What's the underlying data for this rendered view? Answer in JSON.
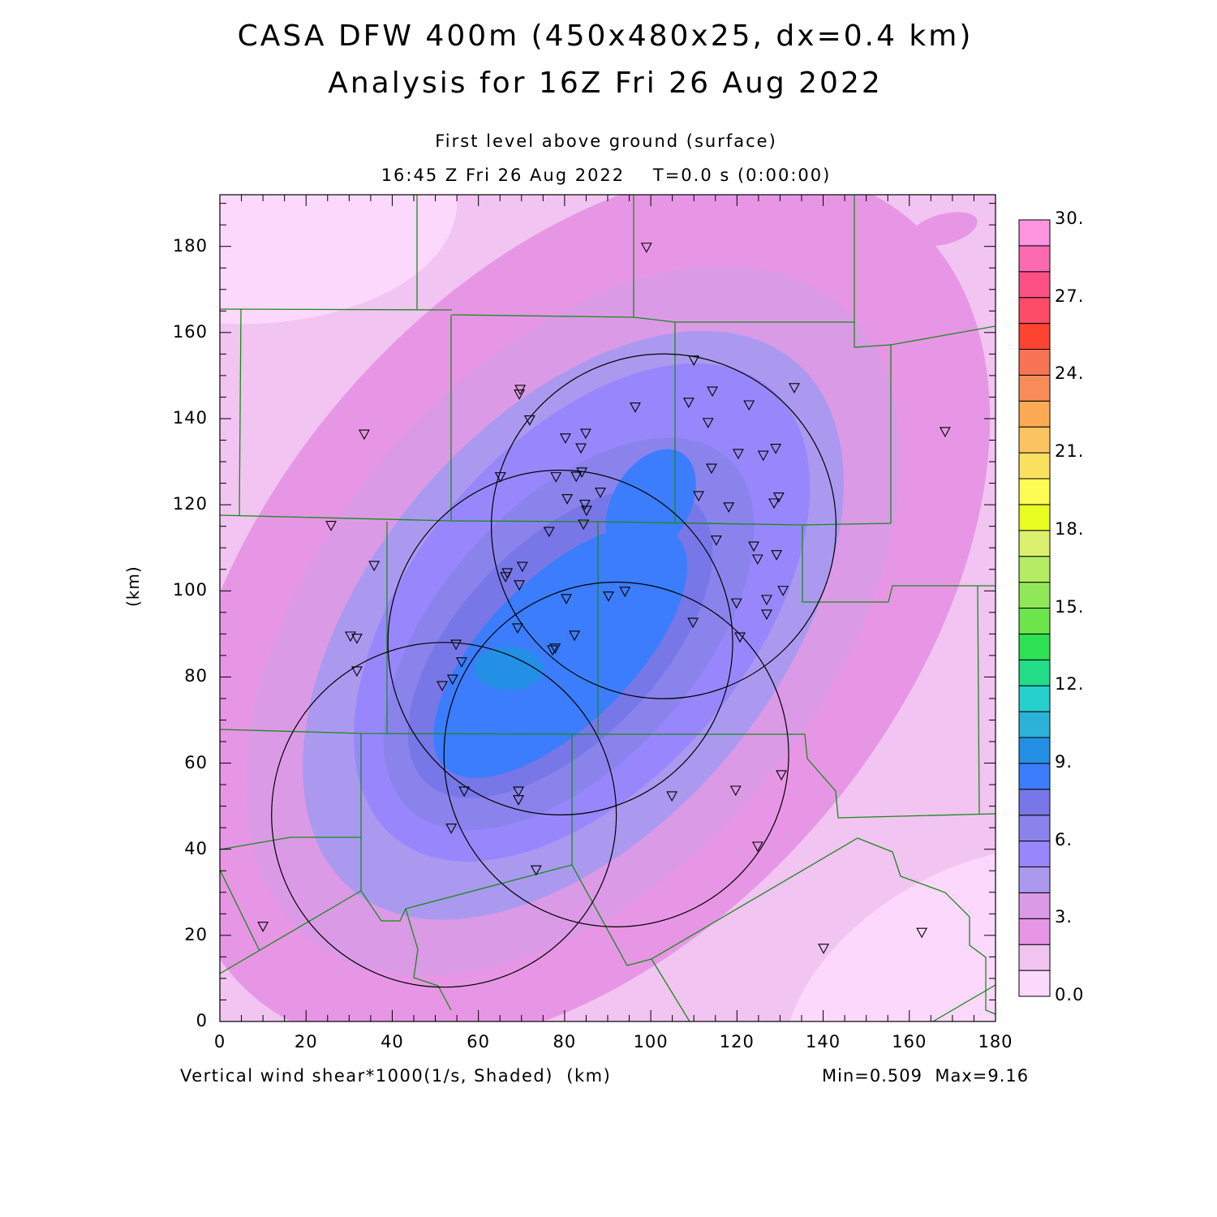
{
  "chart_data": {
    "type": "heatmap",
    "title": "CASA DFW 400m (450x480x25, dx=0.4 km)",
    "subtitle": "Analysis for 16Z Fri 26 Aug 2022",
    "level_label": "First level above ground (surface)",
    "time_label": "16:45 Z Fri 26 Aug 2022    T=0.0 s (0:00:00)",
    "variable_label": "Vertical wind shear*1000(1/s, Shaded)  (km)",
    "minmax_label": "Min=0.509  Max=9.16",
    "min": 0.509,
    "max": 9.16,
    "xlabel": "(km)",
    "ylabel": "(km)",
    "xlim": [
      0,
      180
    ],
    "ylim": [
      0,
      192
    ],
    "x_ticks": [
      "0",
      "20",
      "40",
      "60",
      "80",
      "100",
      "120",
      "140",
      "160",
      "180"
    ],
    "y_ticks": [
      "0",
      "20",
      "40",
      "60",
      "80",
      "100",
      "120",
      "140",
      "160",
      "180"
    ],
    "colorbar": {
      "range": [
        0,
        30
      ],
      "step": 1,
      "tick_labels": [
        "0.0",
        "3.",
        "6.",
        "9.",
        "12.",
        "15.",
        "18.",
        "21.",
        "24.",
        "27.",
        "30."
      ],
      "colors": [
        "#fdd8fd",
        "#f1c4f1",
        "#e796e5",
        "#db9ae6",
        "#ab99f0",
        "#9887fc",
        "#8a83ec",
        "#7877e8",
        "#3b7dfc",
        "#2390e6",
        "#2cb2d8",
        "#26d0cc",
        "#22dc88",
        "#2ee054",
        "#6ce44c",
        "#90e858",
        "#b4ec64",
        "#dcf070",
        "#e8fc20",
        "#fcfc54",
        "#fce060",
        "#fcc460",
        "#fcaa54",
        "#f88c58",
        "#f87454",
        "#fc4430",
        "#fc4c68",
        "#fc5084",
        "#fc6ab0",
        "#fc94e0"
      ]
    },
    "radar_circles_km": [
      {
        "x": 52,
        "y": 48,
        "r": 40
      },
      {
        "x": 79,
        "y": 88,
        "r": 40
      },
      {
        "x": 103,
        "y": 115,
        "r": 40
      },
      {
        "x": 92,
        "y": 62,
        "r": 40
      }
    ],
    "stations_km": [
      [
        99.0,
        179.8
      ],
      [
        110.0,
        153.6
      ],
      [
        133.3,
        147.2
      ],
      [
        69.7,
        146.8
      ],
      [
        69.5,
        145.7
      ],
      [
        114.3,
        146.4
      ],
      [
        108.8,
        143.8
      ],
      [
        122.8,
        143.2
      ],
      [
        96.4,
        142.7
      ],
      [
        71.9,
        139.7
      ],
      [
        113.3,
        139.1
      ],
      [
        33.5,
        136.4
      ],
      [
        168.3,
        137.0
      ],
      [
        80.2,
        135.5
      ],
      [
        84.9,
        136.6
      ],
      [
        120.3,
        131.9
      ],
      [
        126.1,
        131.5
      ],
      [
        129.0,
        133.1
      ],
      [
        83.8,
        133.2
      ],
      [
        114.1,
        128.5
      ],
      [
        65.1,
        126.5
      ],
      [
        78.0,
        126.5
      ],
      [
        82.7,
        126.6
      ],
      [
        84.0,
        127.6
      ],
      [
        88.3,
        122.9
      ],
      [
        80.6,
        121.4
      ],
      [
        111.1,
        122.1
      ],
      [
        118.1,
        119.5
      ],
      [
        129.7,
        121.8
      ],
      [
        128.6,
        120.4
      ],
      [
        84.7,
        120.1
      ],
      [
        85.1,
        118.7
      ],
      [
        84.4,
        115.5
      ],
      [
        25.8,
        115.2
      ],
      [
        76.4,
        113.8
      ],
      [
        115.2,
        111.8
      ],
      [
        123.9,
        110.4
      ],
      [
        124.8,
        107.4
      ],
      [
        129.2,
        108.4
      ],
      [
        70.2,
        105.7
      ],
      [
        35.8,
        105.9
      ],
      [
        66.7,
        104.2
      ],
      [
        66.3,
        103.3
      ],
      [
        69.5,
        101.4
      ],
      [
        130.7,
        100.1
      ],
      [
        90.2,
        98.8
      ],
      [
        94.0,
        99.9
      ],
      [
        80.4,
        98.2
      ],
      [
        119.9,
        97.2
      ],
      [
        126.9,
        98.0
      ],
      [
        126.9,
        94.6
      ],
      [
        30.3,
        89.5
      ],
      [
        31.8,
        89.0
      ],
      [
        69.1,
        91.4
      ],
      [
        109.8,
        92.7
      ],
      [
        82.3,
        89.7
      ],
      [
        120.7,
        89.3
      ],
      [
        77.8,
        86.7
      ],
      [
        77.2,
        86.3
      ],
      [
        54.8,
        87.6
      ],
      [
        56.1,
        83.5
      ],
      [
        31.8,
        81.4
      ],
      [
        54.0,
        79.5
      ],
      [
        51.6,
        78.0
      ],
      [
        130.3,
        57.3
      ],
      [
        56.7,
        53.5
      ],
      [
        69.3,
        53.5
      ],
      [
        69.3,
        51.5
      ],
      [
        119.7,
        53.7
      ],
      [
        104.9,
        52.4
      ],
      [
        53.7,
        44.9
      ],
      [
        124.8,
        40.7
      ],
      [
        73.4,
        35.2
      ],
      [
        10.0,
        22.1
      ],
      [
        140.1,
        17.0
      ],
      [
        162.9,
        20.7
      ]
    ]
  }
}
